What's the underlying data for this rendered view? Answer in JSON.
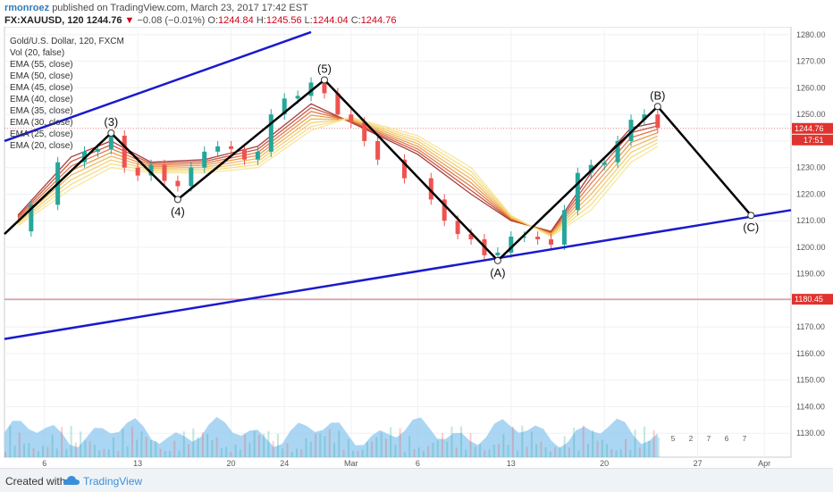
{
  "header": {
    "author": "rmonroez",
    "published_text": "published on TradingView.com, March 23, 2017 17:42 EST",
    "symbol": "FX:XAUUSD, 120",
    "last_price": "1244.76",
    "change": "−0.08 (−0.01%)",
    "ohlc": [
      {
        "label": "O:",
        "value": "1244.84"
      },
      {
        "label": "H:",
        "value": "1245.56"
      },
      {
        "label": "L:",
        "value": "1244.04"
      },
      {
        "label": "C:",
        "value": "1244.76"
      }
    ]
  },
  "legend": [
    "Gold/U.S. Dollar, 120, FXCM",
    "Vol (20, false)",
    "EMA (55, close)",
    "EMA (50, close)",
    "EMA (45, close)",
    "EMA (40, close)",
    "EMA (35, close)",
    "EMA (30, close)",
    "EMA (25, close)",
    "EMA (20, close)"
  ],
  "footer": {
    "created_with": "Created with",
    "brand": "TradingView"
  },
  "colors": {
    "channel": "#1a1acd",
    "wave": "#000000",
    "hline": "#e06060",
    "price_label": "#e0332f",
    "up": "#26a69a",
    "down": "#ef5350",
    "volume_area": "#8ec8ef"
  },
  "chart_data": {
    "type": "line",
    "title": "Gold/U.S. Dollar, 120, FXCM",
    "y_axis": {
      "range": [
        1121,
        1283
      ],
      "ticks": [
        1280,
        1270,
        1260,
        1250,
        1240,
        1230,
        1220,
        1210,
        1200,
        1190,
        1180,
        1170,
        1160,
        1150,
        1140,
        1130
      ],
      "tick_labels": [
        "1280.00",
        "1270.00",
        "1260.00",
        "1250.00",
        "1240.00",
        "1230.00",
        "1220.00",
        "1210.00",
        "1200.00",
        "1190.00",
        "1180.00",
        "1170.00",
        "1160.00",
        "1150.00",
        "1140.00",
        "1130.00"
      ]
    },
    "x_axis": {
      "range": [
        "2017-02-03",
        "2017-04-03"
      ],
      "ticks": [
        {
          "date": "2017-02-06",
          "label": "6"
        },
        {
          "date": "2017-02-13",
          "label": "13"
        },
        {
          "date": "2017-02-20",
          "label": "20"
        },
        {
          "date": "2017-02-24",
          "label": "24"
        },
        {
          "date": "2017-03-01",
          "label": "Mar"
        },
        {
          "date": "2017-03-06",
          "label": "6"
        },
        {
          "date": "2017-03-13",
          "label": "13"
        },
        {
          "date": "2017-03-20",
          "label": "20"
        },
        {
          "date": "2017-03-27",
          "label": "27"
        },
        {
          "date": "2017-04-01",
          "label": "Apr"
        }
      ]
    },
    "price_labels": [
      {
        "value": 1244.76,
        "label": "1244.76"
      },
      {
        "value": 1180.45,
        "label": "1180.45"
      }
    ],
    "countdown_label": "17:51",
    "horizontal_line": 1180.45,
    "close_series": [
      {
        "x": "2017-02-03",
        "y": 1206
      },
      {
        "x": "2017-02-05",
        "y": 1216
      },
      {
        "x": "2017-02-07",
        "y": 1232
      },
      {
        "x": "2017-02-09",
        "y": 1236
      },
      {
        "x": "2017-02-10",
        "y": 1237
      },
      {
        "x": "2017-02-11",
        "y": 1242
      },
      {
        "x": "2017-02-12",
        "y": 1230
      },
      {
        "x": "2017-02-13",
        "y": 1227
      },
      {
        "x": "2017-02-14",
        "y": 1231
      },
      {
        "x": "2017-02-15",
        "y": 1225
      },
      {
        "x": "2017-02-16",
        "y": 1223
      },
      {
        "x": "2017-02-17",
        "y": 1230
      },
      {
        "x": "2017-02-18",
        "y": 1236
      },
      {
        "x": "2017-02-19",
        "y": 1238
      },
      {
        "x": "2017-02-20",
        "y": 1237
      },
      {
        "x": "2017-02-21",
        "y": 1233
      },
      {
        "x": "2017-02-22",
        "y": 1236
      },
      {
        "x": "2017-02-23",
        "y": 1250
      },
      {
        "x": "2017-02-24",
        "y": 1256
      },
      {
        "x": "2017-02-25",
        "y": 1257
      },
      {
        "x": "2017-02-26",
        "y": 1262
      },
      {
        "x": "2017-02-27",
        "y": 1258
      },
      {
        "x": "2017-02-28",
        "y": 1250
      },
      {
        "x": "2017-03-01",
        "y": 1247
      },
      {
        "x": "2017-03-02",
        "y": 1240
      },
      {
        "x": "2017-03-03",
        "y": 1233
      },
      {
        "x": "2017-03-05",
        "y": 1226
      },
      {
        "x": "2017-03-07",
        "y": 1218
      },
      {
        "x": "2017-03-08",
        "y": 1210
      },
      {
        "x": "2017-03-09",
        "y": 1205
      },
      {
        "x": "2017-03-10",
        "y": 1203
      },
      {
        "x": "2017-03-11",
        "y": 1197
      },
      {
        "x": "2017-03-12",
        "y": 1198
      },
      {
        "x": "2017-03-13",
        "y": 1204
      },
      {
        "x": "2017-03-14",
        "y": 1204
      },
      {
        "x": "2017-03-15",
        "y": 1203
      },
      {
        "x": "2017-03-16",
        "y": 1201
      },
      {
        "x": "2017-03-17",
        "y": 1214
      },
      {
        "x": "2017-03-18",
        "y": 1228
      },
      {
        "x": "2017-03-19",
        "y": 1231
      },
      {
        "x": "2017-03-20",
        "y": 1232
      },
      {
        "x": "2017-03-21",
        "y": 1240
      },
      {
        "x": "2017-03-22",
        "y": 1248
      },
      {
        "x": "2017-03-23",
        "y": 1250
      },
      {
        "x": "2017-03-24",
        "y": 1245
      }
    ],
    "ema_band": {
      "upper": [
        {
          "x": "2017-02-04",
          "y": 1212
        },
        {
          "x": "2017-02-08",
          "y": 1234
        },
        {
          "x": "2017-02-11",
          "y": 1240
        },
        {
          "x": "2017-02-14",
          "y": 1232
        },
        {
          "x": "2017-02-18",
          "y": 1233
        },
        {
          "x": "2017-02-22",
          "y": 1238
        },
        {
          "x": "2017-02-26",
          "y": 1254
        },
        {
          "x": "2017-03-01",
          "y": 1247
        },
        {
          "x": "2017-03-06",
          "y": 1235
        },
        {
          "x": "2017-03-10",
          "y": 1220
        },
        {
          "x": "2017-03-13",
          "y": 1210
        },
        {
          "x": "2017-03-16",
          "y": 1206
        },
        {
          "x": "2017-03-19",
          "y": 1228
        },
        {
          "x": "2017-03-22",
          "y": 1245
        },
        {
          "x": "2017-03-24",
          "y": 1247
        }
      ],
      "lower": [
        {
          "x": "2017-02-04",
          "y": 1208
        },
        {
          "x": "2017-02-08",
          "y": 1222
        },
        {
          "x": "2017-02-11",
          "y": 1230
        },
        {
          "x": "2017-02-14",
          "y": 1228
        },
        {
          "x": "2017-02-18",
          "y": 1228
        },
        {
          "x": "2017-02-22",
          "y": 1230
        },
        {
          "x": "2017-02-26",
          "y": 1244
        },
        {
          "x": "2017-03-01",
          "y": 1249
        },
        {
          "x": "2017-03-06",
          "y": 1242
        },
        {
          "x": "2017-03-10",
          "y": 1230
        },
        {
          "x": "2017-03-13",
          "y": 1212
        },
        {
          "x": "2017-03-16",
          "y": 1204
        },
        {
          "x": "2017-03-19",
          "y": 1214
        },
        {
          "x": "2017-03-22",
          "y": 1232
        },
        {
          "x": "2017-03-24",
          "y": 1238
        }
      ]
    },
    "channel_lines": [
      {
        "name": "upper",
        "from": {
          "x": "2017-02-03",
          "y": 1240
        },
        "to": {
          "x": "2017-02-26",
          "y": 1281
        }
      },
      {
        "name": "lower",
        "from": {
          "x": "2017-02-03",
          "y": 1165.5
        },
        "to": {
          "x": "2017-04-03",
          "y": 1214
        }
      }
    ],
    "wave_points": [
      {
        "label": "",
        "x": "2017-02-03",
        "y": 1205
      },
      {
        "label": "(3)",
        "x": "2017-02-11",
        "y": 1243
      },
      {
        "label": "(4)",
        "x": "2017-02-16",
        "y": 1218
      },
      {
        "label": "(5)",
        "x": "2017-02-27",
        "y": 1263
      },
      {
        "label": "(A)",
        "x": "2017-03-12",
        "y": 1195
      },
      {
        "label": "(B)",
        "x": "2017-03-24",
        "y": 1253
      },
      {
        "label": "(C)",
        "x": "2017-03-31",
        "y": 1212
      }
    ],
    "volume_markers": [
      "5",
      "2",
      "7",
      "6",
      "7"
    ]
  }
}
